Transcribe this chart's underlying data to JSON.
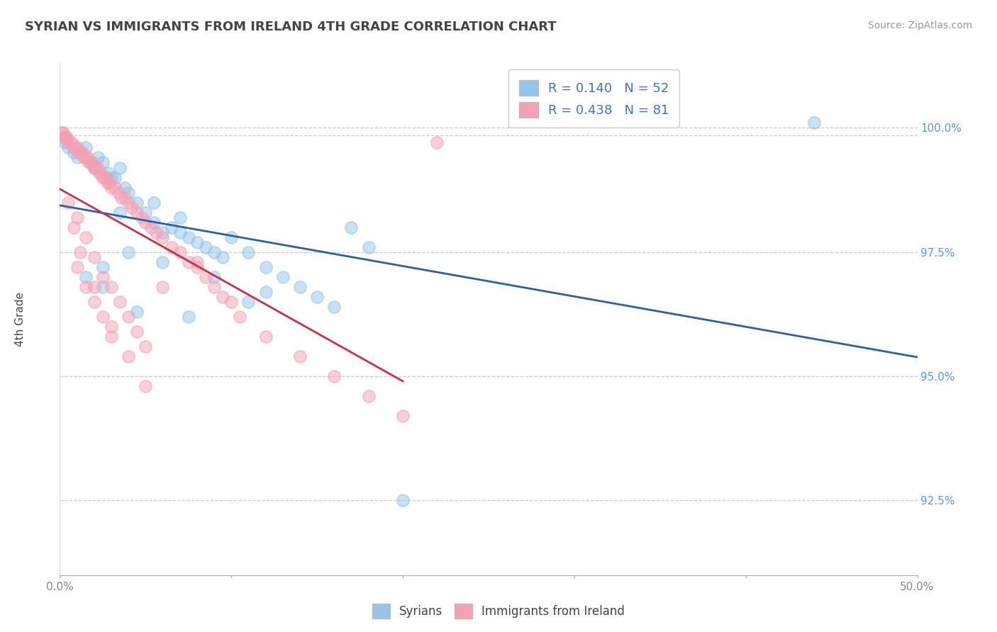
{
  "title": "SYRIAN VS IMMIGRANTS FROM IRELAND 4TH GRADE CORRELATION CHART",
  "source": "Source: ZipAtlas.com",
  "xmin": 0.0,
  "xmax": 50.0,
  "ymin": 91.0,
  "ymax": 101.3,
  "ylabel": "4th Grade",
  "R_blue": 0.14,
  "N_blue": 52,
  "R_pink": 0.438,
  "N_pink": 81,
  "blue_color": "#92C5E8",
  "pink_color": "#F4A0B5",
  "blue_line_color": "#2E5FA3",
  "pink_line_color": "#C8304A",
  "legend_blue_label": "Syrians",
  "legend_pink_label": "Immigrants from Ireland",
  "ytick_positions": [
    92.5,
    95.0,
    97.5,
    100.0
  ],
  "ytick_labels": [
    "92.5%",
    "95.0%",
    "97.5%",
    "100.0%"
  ],
  "xtick_positions": [
    0,
    10,
    20,
    30,
    40,
    50
  ],
  "xtick_labels": [
    "0.0%",
    "",
    "",
    "",
    "",
    "50.0%"
  ],
  "grid_color": "#CCCCCC",
  "bg_color": "#FFFFFF",
  "dpi": 100,
  "figsize": [
    14.06,
    8.92
  ],
  "blue_scatter_x": [
    0.2,
    0.3,
    0.5,
    0.8,
    1.0,
    1.2,
    1.5,
    1.8,
    2.0,
    2.2,
    2.5,
    2.8,
    3.0,
    3.2,
    3.5,
    3.8,
    4.0,
    4.5,
    5.0,
    5.5,
    6.0,
    6.5,
    7.0,
    7.5,
    8.0,
    8.5,
    9.0,
    9.5,
    10.0,
    11.0,
    12.0,
    13.0,
    14.0,
    15.0,
    16.0,
    17.0,
    18.0,
    3.5,
    5.5,
    7.0,
    9.0,
    11.0,
    1.5,
    2.5,
    4.0,
    6.0,
    2.5,
    4.5,
    7.5,
    12.0,
    44.0,
    20.0
  ],
  "blue_scatter_y": [
    99.8,
    99.7,
    99.6,
    99.5,
    99.4,
    99.5,
    99.6,
    99.3,
    99.2,
    99.4,
    99.3,
    99.1,
    99.0,
    99.0,
    99.2,
    98.8,
    98.7,
    98.5,
    98.3,
    98.1,
    97.9,
    98.0,
    97.9,
    97.8,
    97.7,
    97.6,
    97.5,
    97.4,
    97.8,
    97.5,
    97.2,
    97.0,
    96.8,
    96.6,
    96.4,
    98.0,
    97.6,
    98.3,
    98.5,
    98.2,
    97.0,
    96.5,
    97.0,
    97.2,
    97.5,
    97.3,
    96.8,
    96.3,
    96.2,
    96.7,
    100.1,
    92.5
  ],
  "pink_scatter_x": [
    0.1,
    0.2,
    0.3,
    0.4,
    0.5,
    0.6,
    0.7,
    0.8,
    0.9,
    1.0,
    1.1,
    1.2,
    1.3,
    1.4,
    1.5,
    1.6,
    1.7,
    1.8,
    1.9,
    2.0,
    2.1,
    2.2,
    2.3,
    2.4,
    2.5,
    2.6,
    2.7,
    2.8,
    2.9,
    3.0,
    3.2,
    3.4,
    3.6,
    3.8,
    4.0,
    4.2,
    4.5,
    4.8,
    5.0,
    5.3,
    5.6,
    6.0,
    6.5,
    7.0,
    7.5,
    8.0,
    8.5,
    9.0,
    9.5,
    10.0,
    0.5,
    1.0,
    1.5,
    2.0,
    2.5,
    3.0,
    3.5,
    4.0,
    4.5,
    5.0,
    1.0,
    1.5,
    2.0,
    2.5,
    3.0,
    0.8,
    1.2,
    2.0,
    3.0,
    4.0,
    5.0,
    10.5,
    12.0,
    14.0,
    16.0,
    18.0,
    20.0,
    6.0,
    22.0,
    8.0,
    0.3
  ],
  "pink_scatter_y": [
    99.9,
    99.9,
    99.8,
    99.8,
    99.7,
    99.7,
    99.7,
    99.6,
    99.6,
    99.6,
    99.5,
    99.5,
    99.5,
    99.4,
    99.4,
    99.4,
    99.3,
    99.3,
    99.3,
    99.2,
    99.2,
    99.2,
    99.1,
    99.1,
    99.0,
    99.0,
    99.0,
    98.9,
    98.9,
    98.8,
    98.8,
    98.7,
    98.6,
    98.6,
    98.5,
    98.4,
    98.3,
    98.2,
    98.1,
    98.0,
    97.9,
    97.8,
    97.6,
    97.5,
    97.3,
    97.2,
    97.0,
    96.8,
    96.6,
    96.5,
    98.5,
    98.2,
    97.8,
    97.4,
    97.0,
    96.8,
    96.5,
    96.2,
    95.9,
    95.6,
    97.2,
    96.8,
    96.5,
    96.2,
    95.8,
    98.0,
    97.5,
    96.8,
    96.0,
    95.4,
    94.8,
    96.2,
    95.8,
    95.4,
    95.0,
    94.6,
    94.2,
    96.8,
    99.7,
    97.3,
    99.8
  ]
}
